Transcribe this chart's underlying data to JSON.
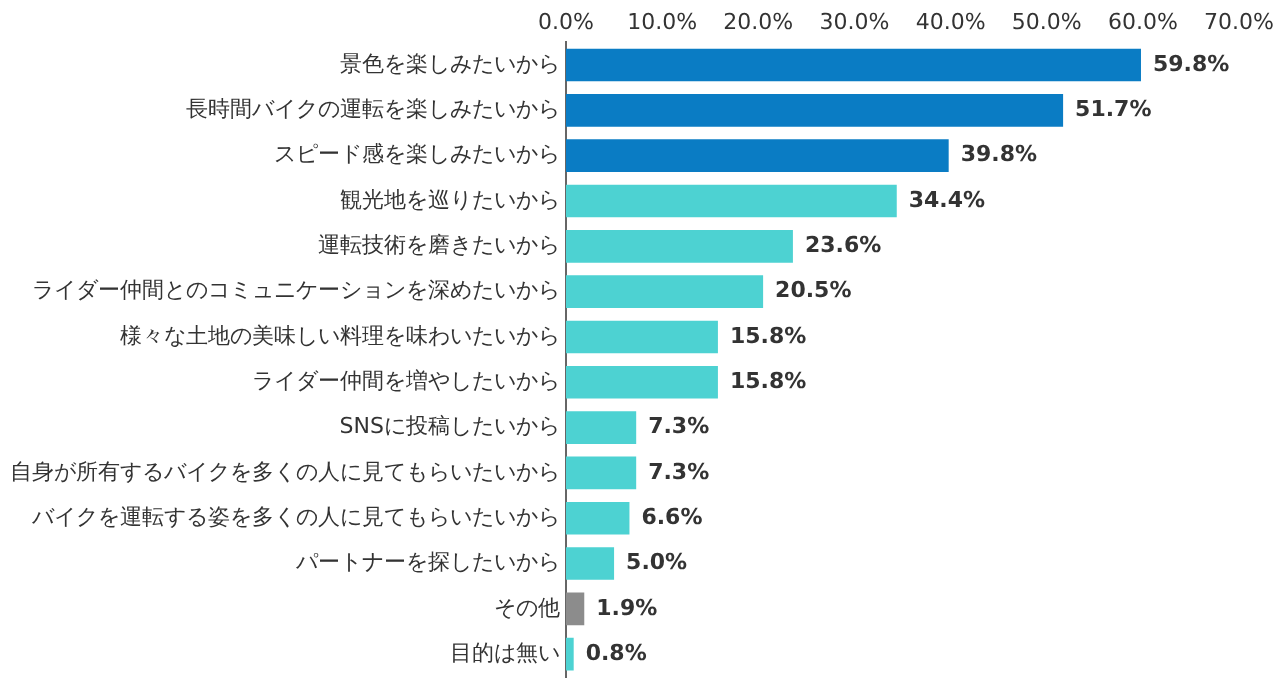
{
  "chart_data": {
    "type": "bar",
    "orientation": "horizontal",
    "categories": [
      "景色を楽しみたいから",
      "長時間バイクの運転を楽しみたいから",
      "スピード感を楽しみたいから",
      "観光地を巡りたいから",
      "運転技術を磨きたいから",
      "ライダー仲間とのコミュニケーションを深めたいから",
      "様々な土地の美味しい料理を味わいたいから",
      "ライダー仲間を増やしたいから",
      "SNSに投稿したいから",
      "自身が所有するバイクを多くの人に見てもらいたいから",
      "バイクを運転する姿を多くの人に見てもらいたいから",
      "パートナーを探したいから",
      "その他",
      "目的は無い"
    ],
    "values": [
      59.8,
      51.7,
      39.8,
      34.4,
      23.6,
      20.5,
      15.8,
      15.8,
      7.3,
      7.3,
      6.6,
      5.0,
      1.9,
      0.8
    ],
    "value_labels": [
      "59.8%",
      "51.7%",
      "39.8%",
      "34.4%",
      "23.6%",
      "20.5%",
      "15.8%",
      "15.8%",
      "7.3%",
      "7.3%",
      "6.6%",
      "5.0%",
      "1.9%",
      "0.8%"
    ],
    "colors": [
      "#0a7cc4",
      "#0a7cc4",
      "#0a7cc4",
      "#4dd2d2",
      "#4dd2d2",
      "#4dd2d2",
      "#4dd2d2",
      "#4dd2d2",
      "#4dd2d2",
      "#4dd2d2",
      "#4dd2d2",
      "#4dd2d2",
      "#8c8c8c",
      "#4dd2d2"
    ],
    "xlim": [
      0,
      70
    ],
    "xticks": [
      {
        "value": 0,
        "label": "0.0%"
      },
      {
        "value": 10,
        "label": "10.0%"
      },
      {
        "value": 20,
        "label": "20.0%"
      },
      {
        "value": 30,
        "label": "30.0%"
      },
      {
        "value": 40,
        "label": "40.0%"
      },
      {
        "value": 50,
        "label": "50.0%"
      },
      {
        "value": 60,
        "label": "60.0%"
      },
      {
        "value": 70,
        "label": "70.0%"
      }
    ],
    "grid": false,
    "legend": false
  }
}
